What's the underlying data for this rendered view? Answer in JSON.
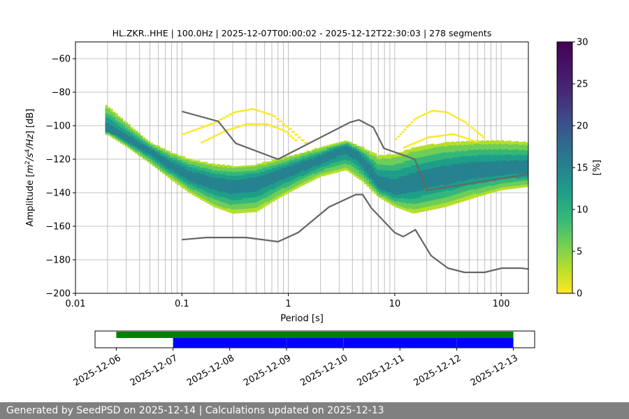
{
  "chart_data": [
    {
      "type": "heatmap",
      "title": "HL.ZKR..HHE | 100.0Hz | 2025-12-07T00:00:02 - 2025-12-12T22:30:03 | 278 segments",
      "xlabel": "Period [s]",
      "ylabel_parts": [
        "Amplitude [",
        "m",
        "2",
        "/",
        "s",
        "4",
        "/",
        "Hz",
        "] [dB]"
      ],
      "x_scale": "log",
      "xlim": [
        0.01,
        180
      ],
      "ylim": [
        -200,
        -50
      ],
      "x_ticks": [
        {
          "value": 0.01,
          "label": "0.01"
        },
        {
          "value": 0.1,
          "label": "0.1"
        },
        {
          "value": 1,
          "label": "1"
        },
        {
          "value": 10,
          "label": "10"
        },
        {
          "value": 100,
          "label": "100"
        }
      ],
      "y_ticks": [
        {
          "value": -60,
          "label": "−60"
        },
        {
          "value": -80,
          "label": "−80"
        },
        {
          "value": -100,
          "label": "−100"
        },
        {
          "value": -120,
          "label": "−120"
        },
        {
          "value": -140,
          "label": "−140"
        },
        {
          "value": -160,
          "label": "−160"
        },
        {
          "value": -180,
          "label": "−180"
        },
        {
          "value": -200,
          "label": "−200"
        }
      ],
      "grid": true,
      "colormap": "viridis_r",
      "colorbar": {
        "label": "[%]",
        "range": [
          0,
          30
        ],
        "ticks": [
          {
            "value": 0,
            "label": "0"
          },
          {
            "value": 5,
            "label": "5"
          },
          {
            "value": 10,
            "label": "10"
          },
          {
            "value": 15,
            "label": "15"
          },
          {
            "value": 20,
            "label": "20"
          },
          {
            "value": 25,
            "label": "25"
          },
          {
            "value": 30,
            "label": "30"
          }
        ]
      },
      "psd_mode": {
        "period": [
          0.02,
          0.03,
          0.05,
          0.08,
          0.12,
          0.2,
          0.3,
          0.5,
          0.8,
          1.2,
          2,
          3,
          3.5,
          4.5,
          6,
          7,
          10,
          20,
          50,
          100,
          180
        ],
        "db": [
          -102,
          -108,
          -115,
          -124,
          -130,
          -134,
          -136,
          -134,
          -129,
          -125,
          -120,
          -114,
          -113,
          -117,
          -128,
          -135,
          -138,
          -132,
          -127,
          -126,
          -125
        ]
      },
      "psd_spread": {
        "period": [
          0.02,
          0.03,
          0.05,
          0.08,
          0.12,
          0.2,
          0.3,
          0.5,
          0.8,
          1.2,
          2,
          3.5,
          5,
          7,
          10,
          15,
          30,
          60,
          100,
          180
        ],
        "upper_db": [
          -88,
          -98,
          -110,
          -116,
          -120,
          -123,
          -124,
          -123,
          -120,
          -117,
          -113,
          -109,
          -113,
          -118,
          -117,
          -113,
          -110,
          -109,
          -109,
          -110
        ],
        "lower_db": [
          -105,
          -112,
          -122,
          -132,
          -140,
          -148,
          -152,
          -151,
          -143,
          -137,
          -130,
          -126,
          -133,
          -142,
          -148,
          -152,
          -148,
          -142,
          -138,
          -136
        ]
      },
      "psd_outliers": [
        {
          "period": [
            0.1,
            0.2,
            0.3,
            0.45,
            0.7,
            1.0,
            1.5
          ],
          "db": [
            -105,
            -98,
            -92,
            -90,
            -94,
            -102,
            -112
          ]
        },
        {
          "period": [
            0.15,
            0.25,
            0.4,
            0.6,
            0.9,
            1.2
          ],
          "db": [
            -110,
            -103,
            -99,
            -99,
            -103,
            -110
          ]
        },
        {
          "period": [
            10,
            15,
            22,
            30,
            45,
            70
          ],
          "db": [
            -108,
            -96,
            -91,
            -92,
            -98,
            -108
          ]
        },
        {
          "period": [
            12,
            20,
            35,
            60
          ],
          "db": [
            -113,
            -107,
            -105,
            -110
          ]
        }
      ],
      "series": [
        {
          "role": "high-noise-model",
          "x": [
            0.1,
            0.22,
            0.32,
            0.8,
            3.8,
            4.6,
            6.3,
            7.9,
            15.4,
            20,
            180
          ],
          "y": [
            -91.5,
            -97.4,
            -110.5,
            -120,
            -98,
            -96.5,
            -101,
            -113.5,
            -120,
            -138.5,
            -129
          ]
        },
        {
          "role": "low-noise-model",
          "x": [
            0.1,
            0.17,
            0.4,
            0.8,
            1.24,
            2.4,
            4.3,
            5,
            6,
            10,
            12,
            15.6,
            21.9,
            31.6,
            45,
            70,
            101,
            154,
            180
          ],
          "y": [
            -168,
            -166.7,
            -166.7,
            -169.2,
            -163.7,
            -148.6,
            -141.1,
            -141.1,
            -149,
            -163.8,
            -166.2,
            -162.1,
            -177.5,
            -185,
            -187.5,
            -187.5,
            -185,
            -185,
            -185.5
          ]
        }
      ]
    },
    {
      "type": "timeline",
      "x_ticks": [
        "2025-12-06",
        "2025-12-07",
        "2025-12-08",
        "2025-12-09",
        "2025-12-10",
        "2025-12-11",
        "2025-12-12",
        "2025-12-13"
      ],
      "xlim": [
        "2025-12-05T15:00",
        "2025-12-13T09:00"
      ],
      "availability": {
        "color": "#008000",
        "segments": [
          {
            "start": "2025-12-06T00:00",
            "end": "2025-12-13T00:00"
          }
        ]
      },
      "processed": {
        "color": "#0000ff",
        "segments": [
          {
            "start": "2025-12-07T00:00",
            "end": "2025-12-09T00:00"
          },
          {
            "start": "2025-12-09T00:03",
            "end": "2025-12-10T00:00"
          },
          {
            "start": "2025-12-10T00:03",
            "end": "2025-12-12T00:00"
          },
          {
            "start": "2025-12-12T00:03",
            "end": "2025-12-13T00:00"
          }
        ]
      }
    }
  ],
  "footer": {
    "text": "Generated by SeedPSD on 2025-12-14 | Calculations updated on 2025-12-13"
  }
}
